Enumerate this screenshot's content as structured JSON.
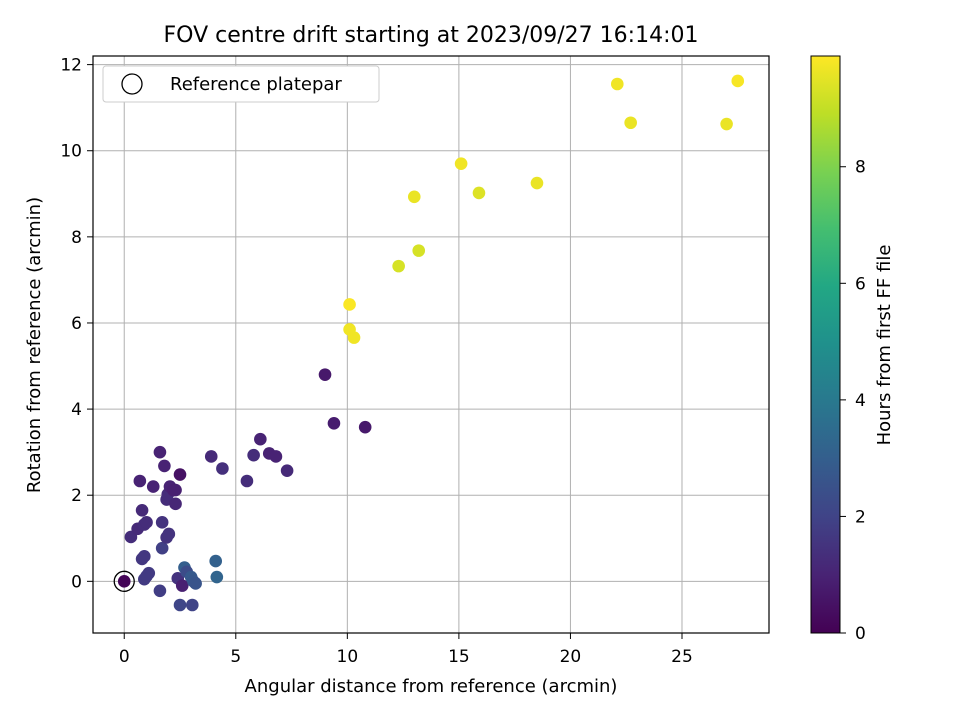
{
  "chart_data": {
    "type": "scatter",
    "title": "FOV centre drift starting at 2023/09/27 16:14:01",
    "xlabel": "Angular distance from reference (arcmin)",
    "ylabel": "Rotation from reference (arcmin)",
    "xlim": [
      -1.4,
      28.9
    ],
    "ylim": [
      -1.2,
      12.2
    ],
    "xticks": [
      0,
      5,
      10,
      15,
      20,
      25
    ],
    "yticks": [
      0,
      2,
      4,
      6,
      8,
      10,
      12
    ],
    "grid": true,
    "legend": {
      "placement": "upper-left",
      "entries": [
        "Reference platepar"
      ]
    },
    "reference_point": {
      "label": "Reference platepar",
      "x": 0,
      "y": 0
    },
    "colorbar": {
      "label": "Hours from first FF file",
      "colormap": "viridis",
      "range": [
        0,
        9.9
      ],
      "ticks": [
        0,
        2,
        4,
        6,
        8
      ]
    },
    "points": [
      {
        "x": 0.0,
        "y": 0.0,
        "c": 0.1
      },
      {
        "x": 0.3,
        "y": 1.03,
        "c": 1.3
      },
      {
        "x": 0.6,
        "y": 1.22,
        "c": 1.2
      },
      {
        "x": 0.7,
        "y": 2.33,
        "c": 1.0
      },
      {
        "x": 0.8,
        "y": 1.65,
        "c": 1.2
      },
      {
        "x": 0.9,
        "y": 1.32,
        "c": 1.3
      },
      {
        "x": 1.0,
        "y": 1.37,
        "c": 1.3
      },
      {
        "x": 0.8,
        "y": 0.52,
        "c": 1.6
      },
      {
        "x": 0.9,
        "y": 0.58,
        "c": 1.6
      },
      {
        "x": 0.9,
        "y": 0.05,
        "c": 1.7
      },
      {
        "x": 1.0,
        "y": 0.12,
        "c": 1.7
      },
      {
        "x": 1.1,
        "y": 0.19,
        "c": 1.7
      },
      {
        "x": 1.3,
        "y": 2.2,
        "c": 1.0
      },
      {
        "x": 1.6,
        "y": -0.22,
        "c": 1.8
      },
      {
        "x": 1.6,
        "y": 3.0,
        "c": 1.0
      },
      {
        "x": 1.8,
        "y": 2.68,
        "c": 1.0
      },
      {
        "x": 1.7,
        "y": 1.37,
        "c": 1.5
      },
      {
        "x": 1.7,
        "y": 0.77,
        "c": 1.9
      },
      {
        "x": 1.9,
        "y": 1.02,
        "c": 1.5
      },
      {
        "x": 2.0,
        "y": 1.1,
        "c": 1.5
      },
      {
        "x": 1.9,
        "y": 1.9,
        "c": 1.3
      },
      {
        "x": 1.95,
        "y": 2.02,
        "c": 1.3
      },
      {
        "x": 2.05,
        "y": 2.2,
        "c": 1.0
      },
      {
        "x": 2.2,
        "y": 2.12,
        "c": 0.9
      },
      {
        "x": 2.3,
        "y": 2.12,
        "c": 0.9
      },
      {
        "x": 2.3,
        "y": 1.8,
        "c": 1.1
      },
      {
        "x": 2.5,
        "y": 2.48,
        "c": 0.5
      },
      {
        "x": 2.4,
        "y": 0.07,
        "c": 1.5
      },
      {
        "x": 2.5,
        "y": -0.55,
        "c": 2.1
      },
      {
        "x": 2.6,
        "y": -0.1,
        "c": 0.9
      },
      {
        "x": 2.7,
        "y": 0.32,
        "c": 3.0
      },
      {
        "x": 2.8,
        "y": 0.22,
        "c": 2.3
      },
      {
        "x": 3.0,
        "y": 0.1,
        "c": 2.8
      },
      {
        "x": 3.1,
        "y": 0.0,
        "c": 2.7
      },
      {
        "x": 3.2,
        "y": -0.05,
        "c": 2.6
      },
      {
        "x": 3.05,
        "y": -0.55,
        "c": 2.0
      },
      {
        "x": 4.1,
        "y": 0.47,
        "c": 3.1
      },
      {
        "x": 4.15,
        "y": 0.1,
        "c": 3.2
      },
      {
        "x": 3.9,
        "y": 2.9,
        "c": 1.2
      },
      {
        "x": 4.4,
        "y": 2.62,
        "c": 1.4
      },
      {
        "x": 5.5,
        "y": 2.33,
        "c": 1.3
      },
      {
        "x": 5.8,
        "y": 2.93,
        "c": 1.3
      },
      {
        "x": 6.1,
        "y": 3.3,
        "c": 1.0
      },
      {
        "x": 6.5,
        "y": 2.97,
        "c": 1.0
      },
      {
        "x": 6.8,
        "y": 2.9,
        "c": 1.0
      },
      {
        "x": 7.3,
        "y": 2.57,
        "c": 1.2
      },
      {
        "x": 9.0,
        "y": 4.8,
        "c": 0.7
      },
      {
        "x": 9.4,
        "y": 3.67,
        "c": 0.8
      },
      {
        "x": 10.8,
        "y": 3.58,
        "c": 0.7
      },
      {
        "x": 10.1,
        "y": 6.43,
        "c": 9.85
      },
      {
        "x": 10.1,
        "y": 5.85,
        "c": 9.7
      },
      {
        "x": 10.3,
        "y": 5.66,
        "c": 9.7
      },
      {
        "x": 12.3,
        "y": 7.32,
        "c": 9.3
      },
      {
        "x": 13.0,
        "y": 8.93,
        "c": 9.6
      },
      {
        "x": 13.2,
        "y": 7.68,
        "c": 9.3
      },
      {
        "x": 15.1,
        "y": 9.7,
        "c": 9.7
      },
      {
        "x": 15.9,
        "y": 9.02,
        "c": 9.4
      },
      {
        "x": 18.5,
        "y": 9.25,
        "c": 9.6
      },
      {
        "x": 22.1,
        "y": 11.55,
        "c": 9.7
      },
      {
        "x": 22.7,
        "y": 10.65,
        "c": 9.6
      },
      {
        "x": 27.0,
        "y": 10.62,
        "c": 9.6
      },
      {
        "x": 27.5,
        "y": 11.62,
        "c": 9.8
      }
    ]
  }
}
